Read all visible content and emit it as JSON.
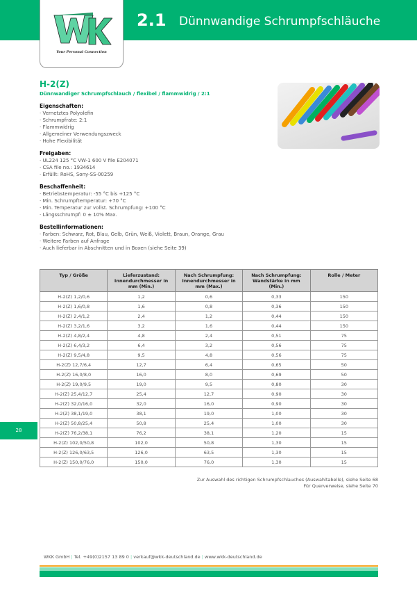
{
  "header": {
    "chapter": "2.1",
    "title": "Dünnwandige Schrumpfschläuche",
    "logo_text": "WKK",
    "slogan": "Your Personal Connection"
  },
  "product": {
    "title": "H-2(Z)",
    "subtitle": "Dünnwandiger Schrumpfschlauch / flexibel / flammwidrig / 2:1"
  },
  "sections": [
    {
      "heading": "Eigenschaften:",
      "items": [
        "· Vernetztes Polyolefin",
        "· Schrumpfrate: 2:1",
        "· Flammwidrig",
        "· Allgemeiner Verwendungszweck",
        "· Hohe Flexibilität"
      ]
    },
    {
      "heading": "Freigaben:",
      "items": [
        "· UL224 125 °C VW-1 600 V file E204071",
        "· CSA file no.: 1934614",
        "· Erfüllt: RoHS, Sony-SS-00259"
      ]
    },
    {
      "heading": "Beschaffenheit:",
      "items": [
        "· Betriebstemperatur: -55 °C bis +125 °C",
        "· Min. Schrumpftemperatur: +70 °C",
        "· Min. Temperatur zur vollst. Schrumpfung: +100 °C",
        "· Längsschrumpf: 0 ± 10% Max."
      ]
    },
    {
      "heading": "Bestellinformationen:",
      "items": [
        "· Farben: Schwarz, Rot, Blau, Gelb, Grün, Weiß, Violett, Braun, Orange, Grau",
        "· Weitere Farben auf Anfrage",
        "· Auch lieferbar in Abschnitten und in Boxen (siehe Seite 39)"
      ]
    }
  ],
  "page_number": "28",
  "table": {
    "headers": [
      "Typ / Größe",
      "Lieferzustand: Innendurchmesser in mm (Min.)",
      "Nach Schrumpfung: Innendurchmesser in mm (Max.)",
      "Nach Schrumpfung: Wandstärke in mm (Min.)",
      "Rolle / Meter"
    ],
    "rows": [
      [
        "H-2(Z) 1,2/0,6",
        "1,2",
        "0,6",
        "0,33",
        "150"
      ],
      [
        "H-2(Z) 1,6/0,8",
        "1,6",
        "0,8",
        "0,36",
        "150"
      ],
      [
        "H-2(Z) 2,4/1,2",
        "2,4",
        "1,2",
        "0,44",
        "150"
      ],
      [
        "H-2(Z) 3,2/1,6",
        "3,2",
        "1,6",
        "0,44",
        "150"
      ],
      [
        "H-2(Z) 4,8/2,4",
        "4,8",
        "2,4",
        "0,51",
        "75"
      ],
      [
        "H-2(Z) 6,4/3,2",
        "6,4",
        "3,2",
        "0,56",
        "75"
      ],
      [
        "H-2(Z) 9,5/4,8",
        "9,5",
        "4,8",
        "0,56",
        "75"
      ],
      [
        "H-2(Z) 12,7/6,4",
        "12,7",
        "6,4",
        "0,65",
        "50"
      ],
      [
        "H-2(Z) 16,0/8,0",
        "16,0",
        "8,0",
        "0,69",
        "50"
      ],
      [
        "H-2(Z) 19,0/9,5",
        "19,0",
        "9,5",
        "0,80",
        "30"
      ],
      [
        "H-2(Z) 25,4/12,7",
        "25,4",
        "12,7",
        "0,90",
        "30"
      ],
      [
        "H-2(Z) 32,0/16,0",
        "32,0",
        "16,0",
        "0,90",
        "30"
      ],
      [
        "H-2(Z) 38,1/19,0",
        "38,1",
        "19,0",
        "1,00",
        "30"
      ],
      [
        "H-2(Z) 50,8/25,4",
        "50,8",
        "25,4",
        "1,00",
        "30"
      ],
      [
        "H-2(Z) 76,2/38,1",
        "76,2",
        "38,1",
        "1,20",
        "15"
      ],
      [
        "H-2(Z) 102,0/50,8",
        "102,0",
        "50,8",
        "1,30",
        "15"
      ],
      [
        "H-2(Z) 126,0/63,5",
        "126,0",
        "63,5",
        "1,30",
        "15"
      ],
      [
        "H-2(Z) 150,0/76,0",
        "150,0",
        "76,0",
        "1,30",
        "15"
      ]
    ]
  },
  "notes": [
    "Zur Auswahl des richtigen Schrumpfschlauches (Auswahltabelle), siehe Seite 68",
    "Für Querverweise, siehe Seite 70"
  ],
  "footer": {
    "company": "WKK GmbH",
    "phone": "Tel. +49(0)2157 13 89 0",
    "email": "verkauf@wkk-deutschland.de",
    "web": "www.wkk-deutschland.de"
  },
  "colors": {
    "brand_green": "#00b272",
    "light_green": "#86e0bb",
    "accent_orange": "#f5a623"
  }
}
